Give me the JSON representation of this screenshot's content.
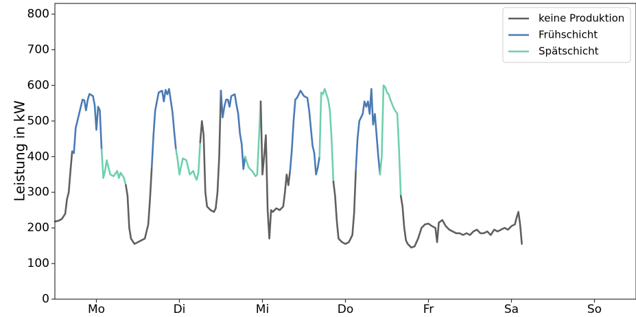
{
  "chart_data": {
    "type": "line",
    "title": "",
    "xlabel": "",
    "ylabel": "Leistung in kW",
    "ylim": [
      0,
      830
    ],
    "yticks": [
      0,
      100,
      200,
      300,
      400,
      500,
      600,
      700,
      800
    ],
    "xlim": [
      0,
      168
    ],
    "categories": [
      "Mo",
      "Di",
      "Mi",
      "Do",
      "Fr",
      "Sa",
      "So"
    ],
    "category_positions": [
      12,
      36,
      60,
      84,
      108,
      132,
      156
    ],
    "legend_position": "top-right",
    "grid": false,
    "series": [
      {
        "name": "keine Produktion",
        "color": "#5f5f5f"
      },
      {
        "name": "Frühschicht",
        "color": "#4a7ab5"
      },
      {
        "name": "Spätschicht",
        "color": "#6ed0ad"
      }
    ],
    "points": [
      [
        0,
        218
      ],
      [
        1,
        220
      ],
      [
        2,
        225
      ],
      [
        3,
        240
      ],
      [
        3.5,
        280
      ],
      [
        4,
        300
      ],
      [
        4.5,
        360
      ],
      [
        5,
        415
      ],
      [
        5.5,
        410
      ],
      [
        6,
        480
      ],
      [
        7,
        520
      ],
      [
        7.5,
        540
      ],
      [
        8,
        560
      ],
      [
        8.5,
        558
      ],
      [
        9,
        530
      ],
      [
        9.5,
        560
      ],
      [
        10,
        576
      ],
      [
        11,
        570
      ],
      [
        11.5,
        545
      ],
      [
        12,
        475
      ],
      [
        12.5,
        540
      ],
      [
        13,
        530
      ],
      [
        13.5,
        420
      ],
      [
        14,
        340
      ],
      [
        14.5,
        360
      ],
      [
        15,
        390
      ],
      [
        15.5,
        370
      ],
      [
        16,
        350
      ],
      [
        17,
        345
      ],
      [
        18,
        360
      ],
      [
        18.5,
        340
      ],
      [
        19,
        355
      ],
      [
        20,
        340
      ],
      [
        20.5,
        320
      ],
      [
        21,
        290
      ],
      [
        21.5,
        200
      ],
      [
        22,
        170
      ],
      [
        23,
        155
      ],
      [
        24,
        160
      ],
      [
        25,
        165
      ],
      [
        26,
        170
      ],
      [
        27,
        210
      ],
      [
        27.5,
        280
      ],
      [
        28,
        370
      ],
      [
        28.5,
        460
      ],
      [
        29,
        530
      ],
      [
        30,
        580
      ],
      [
        31,
        585
      ],
      [
        31.5,
        555
      ],
      [
        32,
        587
      ],
      [
        32.5,
        575
      ],
      [
        33,
        590
      ],
      [
        34,
        525
      ],
      [
        34.5,
        470
      ],
      [
        35,
        420
      ],
      [
        35.5,
        390
      ],
      [
        36,
        350
      ],
      [
        37,
        395
      ],
      [
        38,
        390
      ],
      [
        38.5,
        370
      ],
      [
        39,
        350
      ],
      [
        40,
        360
      ],
      [
        40.5,
        345
      ],
      [
        41,
        335
      ],
      [
        41.5,
        355
      ],
      [
        42,
        440
      ],
      [
        42.5,
        500
      ],
      [
        43,
        460
      ],
      [
        43.5,
        300
      ],
      [
        44,
        260
      ],
      [
        45,
        250
      ],
      [
        46,
        245
      ],
      [
        46.5,
        255
      ],
      [
        47,
        300
      ],
      [
        47.5,
        400
      ],
      [
        48,
        585
      ],
      [
        48.5,
        510
      ],
      [
        49,
        540
      ],
      [
        49.5,
        560
      ],
      [
        50,
        560
      ],
      [
        50.5,
        540
      ],
      [
        51,
        570
      ],
      [
        52,
        575
      ],
      [
        52.5,
        545
      ],
      [
        53,
        520
      ],
      [
        53.5,
        465
      ],
      [
        54,
        435
      ],
      [
        54.5,
        365
      ],
      [
        55,
        400
      ],
      [
        55.5,
        385
      ],
      [
        56,
        370
      ],
      [
        57,
        360
      ],
      [
        58,
        345
      ],
      [
        58.5,
        350
      ],
      [
        59,
        455
      ],
      [
        59.5,
        555
      ],
      [
        60,
        350
      ],
      [
        60.5,
        400
      ],
      [
        61,
        460
      ],
      [
        61.5,
        250
      ],
      [
        62,
        170
      ],
      [
        62.5,
        250
      ],
      [
        63,
        245
      ],
      [
        64,
        255
      ],
      [
        65,
        250
      ],
      [
        66,
        260
      ],
      [
        66.5,
        300
      ],
      [
        67,
        350
      ],
      [
        67.5,
        320
      ],
      [
        68,
        360
      ],
      [
        68.5,
        420
      ],
      [
        69,
        500
      ],
      [
        69.5,
        560
      ],
      [
        70,
        565
      ],
      [
        71,
        585
      ],
      [
        72,
        570
      ],
      [
        73,
        565
      ],
      [
        73.5,
        530
      ],
      [
        74,
        480
      ],
      [
        74.5,
        430
      ],
      [
        75,
        410
      ],
      [
        75.5,
        350
      ],
      [
        76,
        370
      ],
      [
        76.5,
        400
      ],
      [
        77,
        580
      ],
      [
        77.5,
        575
      ],
      [
        78,
        590
      ],
      [
        79,
        560
      ],
      [
        79.5,
        530
      ],
      [
        80,
        450
      ],
      [
        80.5,
        330
      ],
      [
        81,
        290
      ],
      [
        81.5,
        220
      ],
      [
        82,
        170
      ],
      [
        83,
        160
      ],
      [
        84,
        155
      ],
      [
        85,
        160
      ],
      [
        86,
        180
      ],
      [
        86.5,
        240
      ],
      [
        87,
        360
      ],
      [
        87.5,
        450
      ],
      [
        88,
        500
      ],
      [
        89,
        520
      ],
      [
        89.5,
        555
      ],
      [
        90,
        540
      ],
      [
        90.5,
        555
      ],
      [
        91,
        520
      ],
      [
        91.5,
        590
      ],
      [
        92,
        490
      ],
      [
        92.5,
        520
      ],
      [
        93,
        460
      ],
      [
        93.5,
        400
      ],
      [
        94,
        350
      ],
      [
        94.5,
        400
      ],
      [
        95,
        600
      ],
      [
        95.5,
        595
      ],
      [
        96,
        580
      ],
      [
        96.5,
        575
      ],
      [
        97,
        560
      ],
      [
        98,
        535
      ],
      [
        99,
        520
      ],
      [
        99.5,
        420
      ],
      [
        100,
        290
      ],
      [
        100.5,
        260
      ],
      [
        101,
        200
      ],
      [
        101.5,
        165
      ],
      [
        102,
        155
      ],
      [
        103,
        145
      ],
      [
        104,
        148
      ],
      [
        105,
        170
      ],
      [
        106,
        200
      ],
      [
        107,
        210
      ],
      [
        108,
        212
      ],
      [
        109,
        205
      ],
      [
        110,
        200
      ],
      [
        110.5,
        160
      ],
      [
        111,
        215
      ],
      [
        112,
        222
      ],
      [
        113,
        205
      ],
      [
        114,
        195
      ],
      [
        115,
        190
      ],
      [
        116,
        185
      ],
      [
        117,
        185
      ],
      [
        118,
        180
      ],
      [
        119,
        185
      ],
      [
        120,
        180
      ],
      [
        121,
        190
      ],
      [
        122,
        195
      ],
      [
        123,
        185
      ],
      [
        124,
        185
      ],
      [
        125,
        190
      ],
      [
        126,
        180
      ],
      [
        127,
        195
      ],
      [
        128,
        190
      ],
      [
        129,
        195
      ],
      [
        130,
        200
      ],
      [
        131,
        195
      ],
      [
        132,
        205
      ],
      [
        133,
        210
      ],
      [
        133.5,
        230
      ],
      [
        134,
        245
      ],
      [
        134.5,
        210
      ],
      [
        135,
        155
      ]
    ],
    "segments": [
      {
        "series": 0,
        "from": 0,
        "to": 5
      },
      {
        "series": 1,
        "from": 5,
        "to": 13.5
      },
      {
        "series": 2,
        "from": 13.5,
        "to": 20.5
      },
      {
        "series": 0,
        "from": 20.5,
        "to": 28
      },
      {
        "series": 1,
        "from": 28,
        "to": 35
      },
      {
        "series": 2,
        "from": 35,
        "to": 42
      },
      {
        "series": 0,
        "from": 42,
        "to": 48
      },
      {
        "series": 1,
        "from": 48,
        "to": 55
      },
      {
        "series": 2,
        "from": 55,
        "to": 59.5
      },
      {
        "series": 0,
        "from": 59.5,
        "to": 68
      },
      {
        "series": 1,
        "from": 68,
        "to": 76.5
      },
      {
        "series": 2,
        "from": 76.5,
        "to": 80.5
      },
      {
        "series": 0,
        "from": 80.5,
        "to": 87
      },
      {
        "series": 1,
        "from": 87,
        "to": 94
      },
      {
        "series": 2,
        "from": 94,
        "to": 100
      },
      {
        "series": 0,
        "from": 100,
        "to": 135
      }
    ]
  }
}
